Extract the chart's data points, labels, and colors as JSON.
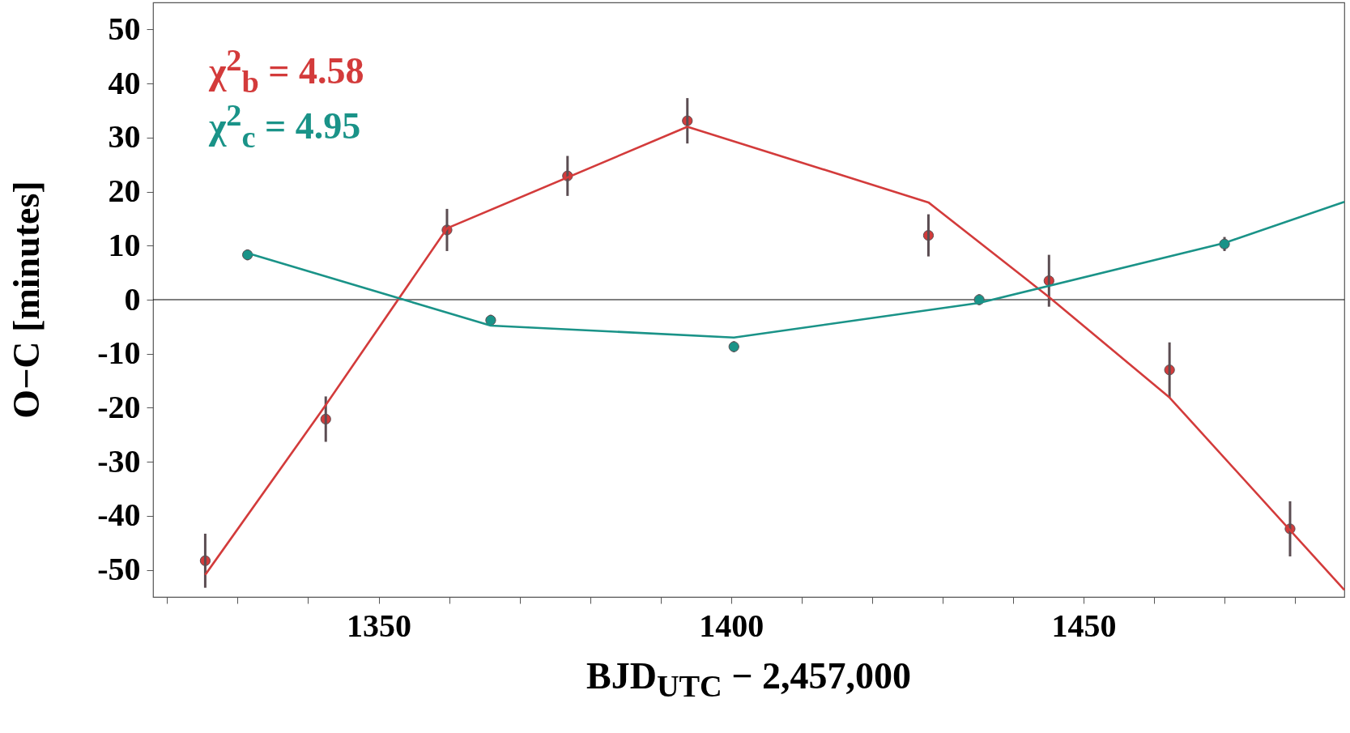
{
  "chart_data": {
    "type": "scatter",
    "xlabel": "BJD$_{UTC}$ − 2,457,000",
    "ylabel": "O−C [minutes]",
    "xlim": [
      1318,
      1487
    ],
    "ylim": [
      -55,
      55
    ],
    "xticks": [
      {
        "value": 1320,
        "label": null
      },
      {
        "value": 1330,
        "label": null
      },
      {
        "value": 1340,
        "label": null
      },
      1350,
      {
        "value": 1360,
        "label": null
      },
      {
        "value": 1370,
        "label": null
      },
      {
        "value": 1380,
        "label": null
      },
      {
        "value": 1390,
        "label": null
      },
      1400,
      {
        "value": 1410,
        "label": null
      },
      {
        "value": 1420,
        "label": null
      },
      {
        "value": 1430,
        "label": null
      },
      {
        "value": 1440,
        "label": null
      },
      1450,
      {
        "value": 1460,
        "label": null
      },
      {
        "value": 1470,
        "label": null
      },
      {
        "value": 1480,
        "label": null
      }
    ],
    "yticks": [
      -50,
      -40,
      -30,
      -20,
      -10,
      0,
      10,
      20,
      30,
      40,
      50
    ],
    "grid": false,
    "ref_lines": [
      {
        "axis": "y",
        "value": 0,
        "color": "#000000"
      }
    ],
    "annotations": [
      "χ$^{2}$$_{b}$ = 4.58",
      "χ$^{2}$$_{c}$ = 4.95"
    ],
    "series": [
      {
        "marker": "circle",
        "color": "#d33b3b",
        "x": [
          1325.4,
          1342.5,
          1359.7,
          1376.8,
          1393.8,
          1428.0,
          1445.1,
          1462.2,
          1479.3
        ],
        "values": [
          -48.3,
          -22.1,
          12.9,
          22.9,
          33.1,
          11.9,
          3.5,
          -13.0,
          -42.4
        ],
        "errors": [
          5.0,
          4.2,
          3.9,
          3.7,
          4.2,
          3.9,
          4.8,
          5.1,
          5.1
        ]
      },
      {
        "type": "line",
        "color": "#d33b3b",
        "x": [
          1325.4,
          1342.5,
          1359.7,
          1393.8,
          1428.0,
          1445.1,
          1462.2,
          1487
        ],
        "values": [
          -50.9,
          -19.5,
          13.2,
          32.0,
          18.0,
          0.5,
          -18.1,
          -53.7
        ]
      },
      {
        "marker": "circle",
        "color": "#1a9388",
        "x": [
          1331.4,
          1365.9,
          1400.4,
          1435.2,
          1470.0
        ],
        "values": [
          8.3,
          -3.8,
          -8.7,
          0.0,
          10.3
        ],
        "errors": [
          1.0,
          1.0,
          1.0,
          1.0,
          1.3
        ]
      },
      {
        "type": "line",
        "color": "#1a9388",
        "x": [
          1331.4,
          1365.9,
          1400.4,
          1435.2,
          1470.0,
          1487
        ],
        "values": [
          8.6,
          -4.8,
          -7.0,
          -0.6,
          10.5,
          18.1
        ]
      }
    ]
  }
}
